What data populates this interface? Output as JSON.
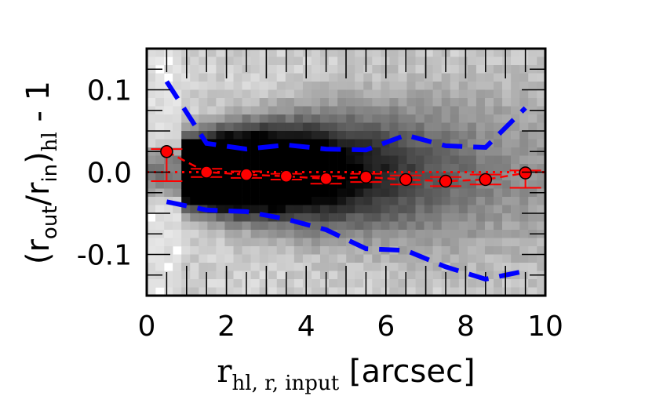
{
  "chart_data": {
    "type": "scatter",
    "xlabel": {
      "main": "r",
      "sub": "hl, r, input",
      "suffix": " [arcsec]"
    },
    "ylabel": {
      "open": "(r",
      "sub1": "out",
      "mid": "/r",
      "sub2": "in",
      "close": ")",
      "sub3": "hl",
      "suffix": " - 1"
    },
    "xlim": [
      0,
      10
    ],
    "ylim": [
      -0.15,
      0.15
    ],
    "xticks": [
      {
        "value": 0,
        "label": "0"
      },
      {
        "value": 2,
        "label": "2"
      },
      {
        "value": 4,
        "label": "4"
      },
      {
        "value": 6,
        "label": "6"
      },
      {
        "value": 8,
        "label": "8"
      },
      {
        "value": 10,
        "label": "10"
      }
    ],
    "yticks": [
      {
        "value": 0.1,
        "label": "0.1"
      },
      {
        "value": 0.0,
        "label": "0.0"
      },
      {
        "value": -0.1,
        "label": "-0.1"
      }
    ],
    "grid": false,
    "background": "2D density histogram (grayscale), densest at small radii near zero",
    "series": [
      {
        "kind": "points_with_errorbars",
        "color": "#ff0000",
        "x": [
          0.5,
          1.5,
          2.5,
          3.5,
          4.5,
          5.5,
          6.5,
          7.5,
          8.5,
          9.5
        ],
        "y": [
          0.025,
          0.0,
          -0.003,
          -0.005,
          -0.008,
          -0.006,
          -0.009,
          -0.011,
          -0.009,
          -0.001
        ],
        "yerr_low": [
          -0.011,
          -0.006,
          -0.007,
          -0.009,
          -0.014,
          -0.012,
          -0.015,
          -0.017,
          -0.015,
          -0.019
        ],
        "yerr_high": [
          0.028,
          0.004,
          0.001,
          -0.002,
          -0.005,
          -0.002,
          -0.004,
          -0.006,
          -0.003,
          0.002
        ]
      },
      {
        "kind": "median_line",
        "style": "dashed",
        "color": "#ff0000",
        "x": [
          0.5,
          1.5,
          2.5,
          3.5,
          4.5,
          5.5,
          6.5,
          7.5,
          8.5,
          9.5
        ],
        "y": [
          0.025,
          0.0,
          -0.003,
          -0.005,
          -0.008,
          -0.006,
          -0.009,
          -0.011,
          -0.009,
          -0.001
        ]
      },
      {
        "kind": "reference_line",
        "style": "dotted",
        "color": "#ff0000",
        "y": 0.0
      },
      {
        "kind": "upper_envelope",
        "style": "dashed",
        "color": "#0000ff",
        "x": [
          0.5,
          1.5,
          2.5,
          3.5,
          4.5,
          5.5,
          6.5,
          7.5,
          8.5,
          9.5
        ],
        "y": [
          0.11,
          0.035,
          0.028,
          0.033,
          0.028,
          0.027,
          0.045,
          0.032,
          0.03,
          0.078
        ]
      },
      {
        "kind": "lower_envelope",
        "style": "dashed",
        "color": "#0000ff",
        "x": [
          0.5,
          1.5,
          2.5,
          3.5,
          4.5,
          5.5,
          6.5,
          7.5,
          8.5,
          9.5
        ],
        "y": [
          -0.036,
          -0.046,
          -0.048,
          -0.057,
          -0.07,
          -0.093,
          -0.095,
          -0.115,
          -0.13,
          -0.12
        ]
      }
    ]
  }
}
